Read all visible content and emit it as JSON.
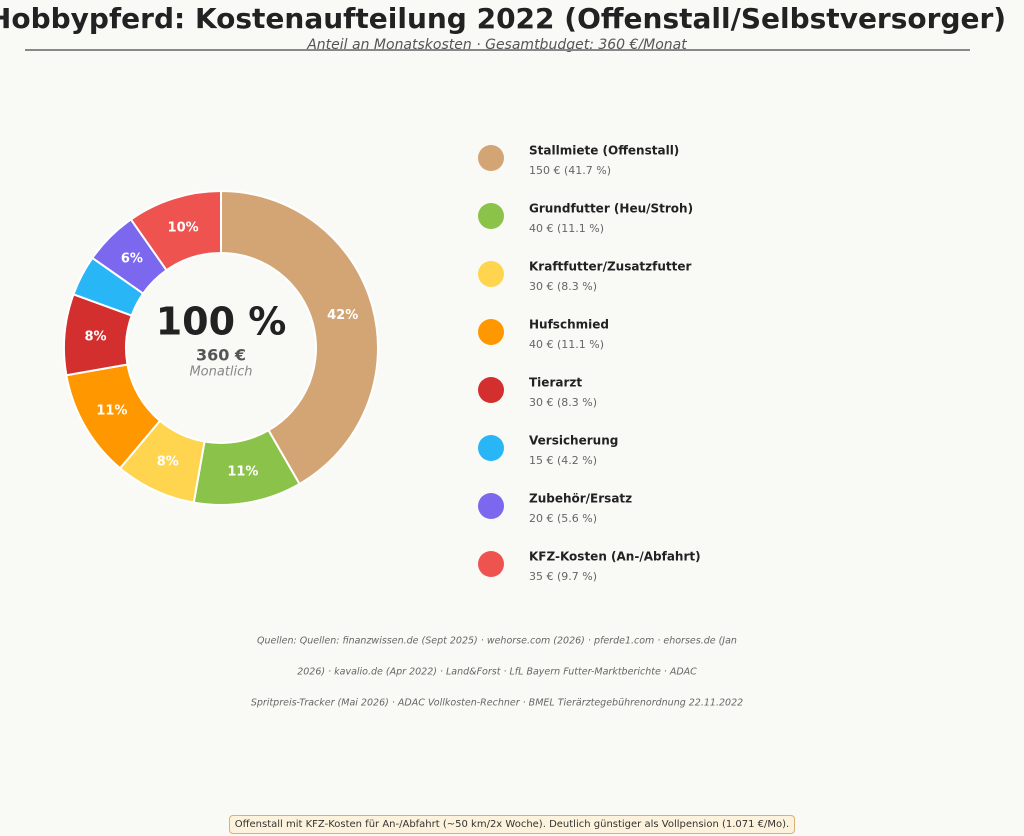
{
  "chart_data": {
    "type": "pie",
    "title": "Hobbypferd: Kostenaufteilung 2022 (Offenstall/Selbstversorger)",
    "subtitle": "Anteil an Monatskosten · Gesamtbudget: 360 €/Monat",
    "center_labels": [
      "100 %",
      "360 €",
      "Monatlich"
    ],
    "categories": [
      "Stallmiete (Offenstall)",
      "Grundfutter (Heu/Stroh)",
      "Kraftfutter/Zusatzfutter",
      "Hufschmied",
      "Tierarzt",
      "Versicherung",
      "Zubehör/Ersatz",
      "KFZ-Kosten (An-/Abfahrt)"
    ],
    "values": [
      150,
      40,
      30,
      40,
      30,
      15,
      20,
      35
    ],
    "value_labels": [
      "42%",
      "11%",
      "8%",
      "11%",
      "8%",
      null,
      "6%",
      "10%"
    ],
    "legend_labels": [
      "150 € (41.7 %)",
      "40 € (11.1 %)",
      "30 € (8.3 %)",
      "40 € (11.1 %)",
      "30 € (8.3 %)",
      "15 € (4.2 %)",
      "20 € (5.6 %)",
      "35 € (9.7 %)"
    ],
    "colors": [
      "#d4a574",
      "#8bc34a",
      "#ffd54f",
      "#ff9800",
      "#d32f2f",
      "#29b6f6",
      "#7b68ee",
      "#ef5350"
    ],
    "sources": [
      "Quellen: Quellen: finanzwissen.de (Sept 2025) · wehorse.com (2026) · pferde1.com · ehorses.de (Jan",
      "2026) · kavalio.de (Apr 2022) · Land&Forst · LfL Bayern Futter-Marktberichte · ADAC",
      "Spritpreis-Tracker (Mai 2026) · ADAC Vollkosten-Rechner · BMEL Tierärztegebührenordnung 22.11.2022"
    ],
    "footnote": "Offenstall mit KFZ-Kosten für An-/Abfahrt (~50 km/2x Woche). Deutlich günstiger als Vollpension (1.071 €/Mo)."
  }
}
